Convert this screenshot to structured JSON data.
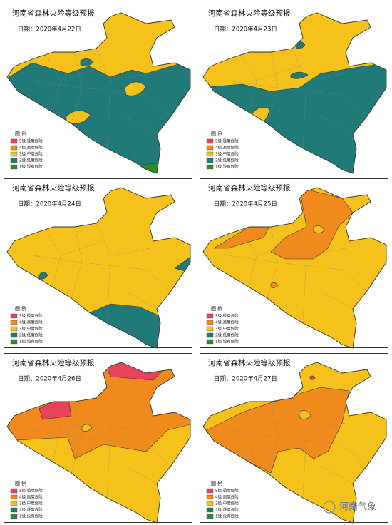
{
  "panels": [
    {
      "title": "河南省森林火险等级预报",
      "date": "日期：2020年4月22日"
    },
    {
      "title": "河南省森林火险等级预报",
      "date": "日期：2020年4月23日"
    },
    {
      "title": "河南省森林火险等级预报",
      "date": "日期：2020年4月24日"
    },
    {
      "title": "河南省森林火险等级预报",
      "date": "日期：2020年4月25日"
    },
    {
      "title": "河南省森林火险等级预报",
      "date": "日期：2020年4月26日"
    },
    {
      "title": "河南省森林火险等级预报",
      "date": "日期：2020年4月27日"
    }
  ],
  "legend": {
    "title": "图 例",
    "items": [
      {
        "label": "5级,极度危险",
        "color": "#e8435a"
      },
      {
        "label": "4级,高度危险",
        "color": "#f08a1c"
      },
      {
        "label": "3级,中度危险",
        "color": "#f5c21b"
      },
      {
        "label": "2级,低度危险",
        "color": "#1f7a78"
      },
      {
        "label": "1级,没有危险",
        "color": "#2c8c2c"
      }
    ]
  },
  "watermark": "河南气象"
}
